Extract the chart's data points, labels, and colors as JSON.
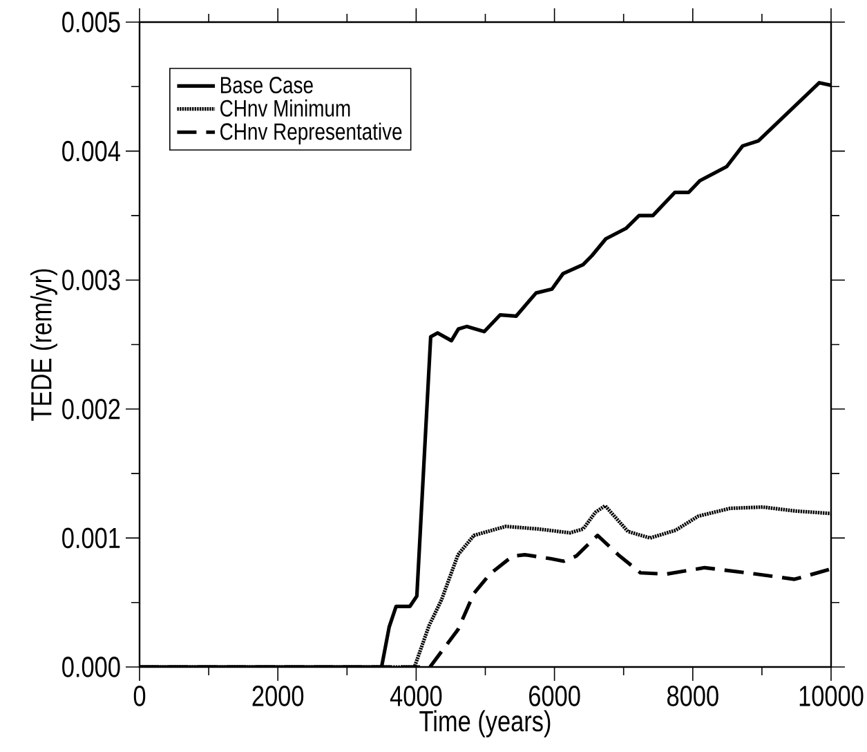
{
  "chart_data": {
    "type": "line",
    "xlabel": "Time (years)",
    "ylabel": "TEDE (rem/yr)",
    "xlim": [
      0,
      10000
    ],
    "xticks": [
      0,
      2000,
      4000,
      6000,
      8000,
      10000
    ],
    "ylim": [
      0,
      0.005
    ],
    "yticks": [
      {
        "value": 0,
        "label": "0.000"
      },
      {
        "value": 0.001,
        "label": "0.001"
      },
      {
        "value": 0.002,
        "label": "0.002"
      },
      {
        "value": 0.003,
        "label": "0.003"
      },
      {
        "value": 0.004,
        "label": "0.004"
      },
      {
        "value": 0.005,
        "label": "0.005"
      }
    ],
    "legend": "top left",
    "series": [
      {
        "name": "Base Case",
        "color": "#000000",
        "line_style": "solid",
        "x": [
          0,
          3500,
          3610,
          3710,
          3910,
          4010,
          4210,
          4310,
          4510,
          4610,
          4730,
          4985,
          5215,
          5445,
          5734,
          5964,
          6124,
          6414,
          6543,
          6743,
          7033,
          7223,
          7423,
          7742,
          7942,
          8102,
          8491,
          8721,
          8951,
          9830,
          10000
        ],
        "values": [
          0,
          0,
          0.00031,
          0.00047,
          0.00047,
          0.00055,
          0.00256,
          0.00259,
          0.00253,
          0.00262,
          0.00264,
          0.0026,
          0.00273,
          0.00272,
          0.0029,
          0.00293,
          0.00305,
          0.00312,
          0.00319,
          0.00332,
          0.0034,
          0.0035,
          0.0035,
          0.00368,
          0.00368,
          0.00377,
          0.00388,
          0.00404,
          0.00408,
          0.00453,
          0.00451
        ]
      },
      {
        "name": "CHnv Minimum",
        "color": "#000000",
        "line_style": "dotted",
        "x": [
          0,
          3976,
          4186,
          4366,
          4605,
          4835,
          5295,
          5764,
          6224,
          6414,
          6594,
          6733,
          7063,
          7383,
          7752,
          8082,
          8541,
          9011,
          9471,
          10000
        ],
        "values": [
          0,
          0,
          0.00032,
          0.00052,
          0.00087,
          0.00102,
          0.00109,
          0.00107,
          0.00104,
          0.00107,
          0.0012,
          0.00125,
          0.00105,
          0.001,
          0.00106,
          0.00117,
          0.00123,
          0.00124,
          0.00121,
          0.00119
        ]
      },
      {
        "name": "CHnv Representative",
        "color": "#000000",
        "line_style": "dashed",
        "x": [
          0,
          4200,
          4605,
          4835,
          5065,
          5395,
          5574,
          5944,
          6134,
          6314,
          6623,
          6923,
          7243,
          7612,
          8172,
          8781,
          9471,
          10000
        ],
        "values": [
          0,
          0,
          0.00029,
          0.00057,
          0.00072,
          0.00086,
          0.00087,
          0.00084,
          0.00082,
          0.00086,
          0.00102,
          0.00087,
          0.00073,
          0.00072,
          0.00077,
          0.00073,
          0.00068,
          0.00076
        ]
      }
    ]
  }
}
